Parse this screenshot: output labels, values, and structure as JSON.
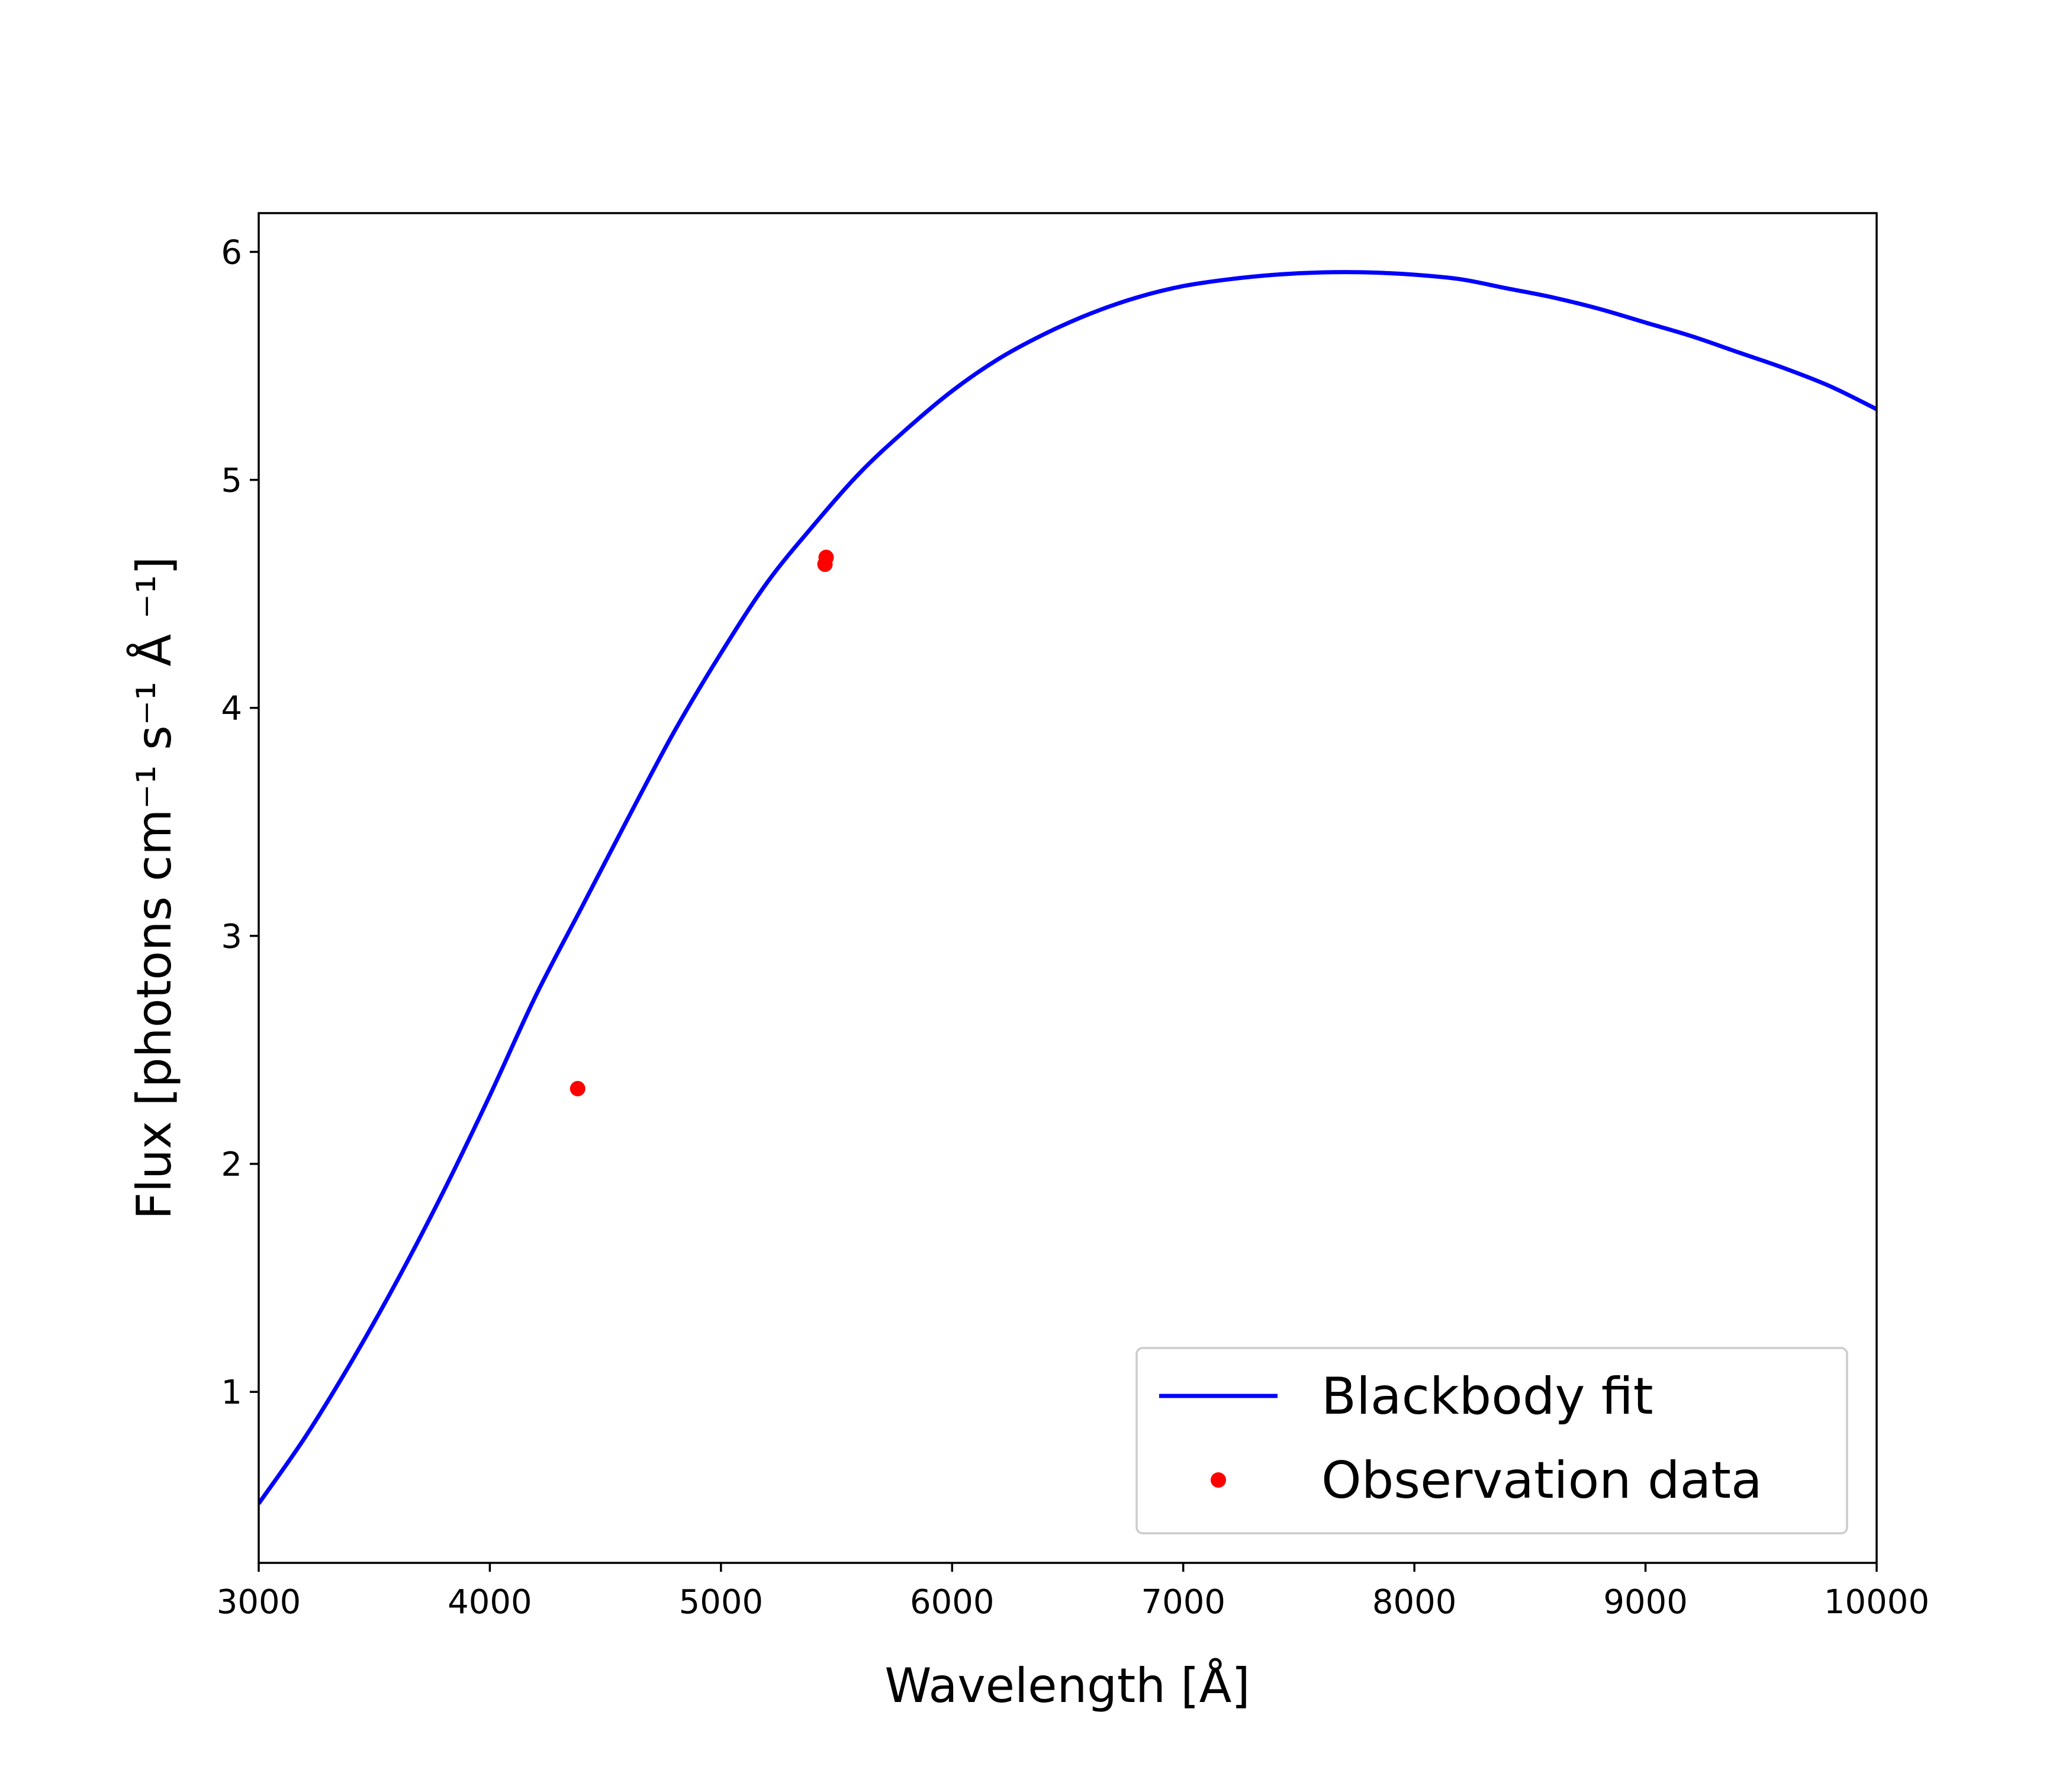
{
  "chart_data": {
    "type": "line",
    "title": "",
    "xlabel": "Wavelength [Å]",
    "ylabel": "Flux [photons cm⁻¹ s⁻¹ Å ⁻¹]",
    "xlim": [
      3000,
      10000
    ],
    "ylim": [
      0.25,
      6.17
    ],
    "xticks": [
      3000,
      4000,
      5000,
      6000,
      7000,
      8000,
      9000,
      10000
    ],
    "xtick_labels": [
      "3000",
      "4000",
      "5000",
      "6000",
      "7000",
      "8000",
      "9000",
      "10000"
    ],
    "yticks": [
      1,
      2,
      3,
      4,
      5,
      6
    ],
    "ytick_labels": [
      "1",
      "2",
      "3",
      "4",
      "5",
      "6"
    ],
    "grid": false,
    "legend_position": "lower-right",
    "series": [
      {
        "name": "Blackbody fit",
        "type": "line",
        "color": "#0000ff",
        "x": [
          3000,
          3200,
          3400,
          3600,
          3800,
          4000,
          4200,
          4400,
          4600,
          4800,
          5000,
          5200,
          5400,
          5600,
          5800,
          6000,
          6200,
          6400,
          6600,
          6800,
          7000,
          7200,
          7400,
          7600,
          7800,
          8000,
          8200,
          8400,
          8600,
          8800,
          9000,
          9200,
          9400,
          9600,
          9800,
          10000
        ],
        "y": [
          0.51,
          0.8,
          1.13,
          1.49,
          1.88,
          2.3,
          2.74,
          3.13,
          3.52,
          3.9,
          4.24,
          4.55,
          4.8,
          5.03,
          5.22,
          5.39,
          5.53,
          5.64,
          5.73,
          5.8,
          5.85,
          5.88,
          5.9,
          5.91,
          5.91,
          5.9,
          5.88,
          5.84,
          5.8,
          5.75,
          5.69,
          5.63,
          5.56,
          5.49,
          5.41,
          5.31
        ]
      },
      {
        "name": "Observation data",
        "type": "scatter",
        "color": "#ff0000",
        "x": [
          4380,
          5450,
          5455
        ],
        "y": [
          2.33,
          4.63,
          4.66
        ]
      }
    ]
  }
}
